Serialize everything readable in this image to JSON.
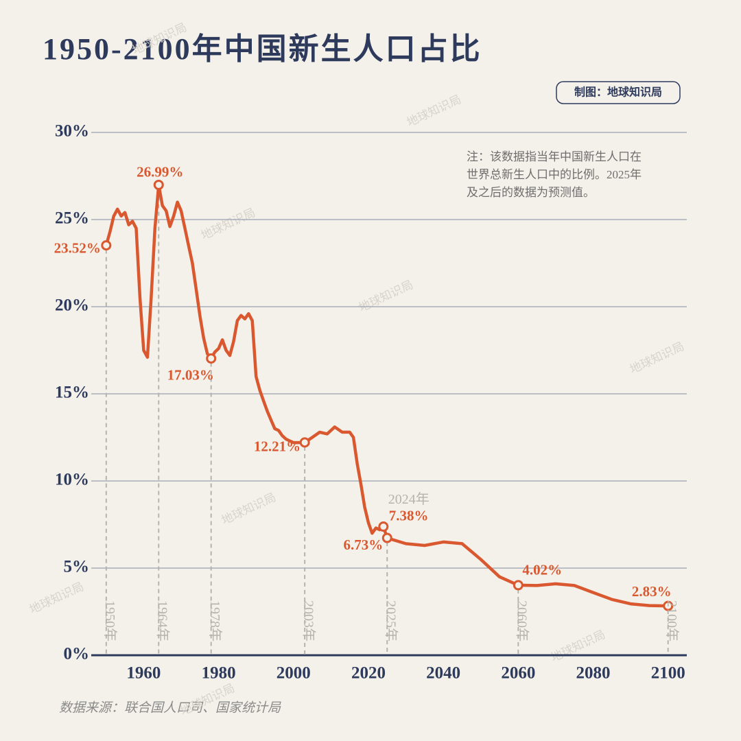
{
  "chart_data": {
    "type": "line",
    "title": "1950-2100年中国新生人口占比",
    "credit": "制图：地球知识局",
    "note": [
      "注：该数据指当年中国新生人口在",
      "世界总新生人口中的比例。2025年",
      "及之后的数据为预测值。"
    ],
    "source": "数据来源：联合国人口司、国家统计局",
    "watermark": "地球知识局",
    "color": "#d9582f",
    "grid": true,
    "xlim": [
      1946,
      2105
    ],
    "ylim": [
      0,
      30
    ],
    "xticks": [
      1960,
      1980,
      2000,
      2020,
      2040,
      2060,
      2080,
      2100
    ],
    "yticks": [
      {
        "value": 0,
        "label": "0%"
      },
      {
        "value": 5,
        "label": "5%"
      },
      {
        "value": 10,
        "label": "10%"
      },
      {
        "value": 15,
        "label": "15%"
      },
      {
        "value": 20,
        "label": "20%"
      },
      {
        "value": 25,
        "label": "25%"
      },
      {
        "value": 30,
        "label": "30%"
      }
    ],
    "x": [
      1950,
      1951,
      1952,
      1953,
      1954,
      1955,
      1956,
      1957,
      1958,
      1959,
      1960,
      1961,
      1962,
      1963,
      1964,
      1965,
      1966,
      1967,
      1968,
      1969,
      1970,
      1971,
      1972,
      1973,
      1974,
      1975,
      1976,
      1977,
      1978,
      1979,
      1980,
      1981,
      1982,
      1983,
      1984,
      1985,
      1986,
      1987,
      1988,
      1989,
      1990,
      1991,
      1992,
      1993,
      1994,
      1995,
      1996,
      1997,
      1998,
      1999,
      2000,
      2001,
      2003,
      2005,
      2007,
      2009,
      2011,
      2013,
      2015,
      2016,
      2017,
      2018,
      2019,
      2020,
      2021,
      2022,
      2023,
      2024,
      2025,
      2030,
      2035,
      2040,
      2045,
      2050,
      2055,
      2060,
      2065,
      2070,
      2075,
      2080,
      2085,
      2090,
      2095,
      2100
    ],
    "values": [
      23.52,
      24.3,
      25.2,
      25.6,
      25.2,
      25.4,
      24.7,
      24.9,
      24.5,
      20.5,
      17.5,
      17.1,
      20.5,
      24.5,
      26.99,
      25.8,
      25.5,
      24.6,
      25.2,
      26.0,
      25.5,
      24.5,
      23.5,
      22.5,
      21.0,
      19.5,
      18.2,
      17.3,
      17.03,
      17.4,
      17.6,
      18.1,
      17.5,
      17.2,
      18.0,
      19.2,
      19.5,
      19.3,
      19.6,
      19.2,
      16.0,
      15.2,
      14.6,
      14.0,
      13.5,
      13.0,
      12.9,
      12.6,
      12.4,
      12.3,
      12.2,
      12.2,
      12.21,
      12.5,
      12.8,
      12.7,
      13.1,
      12.8,
      12.8,
      12.5,
      11.0,
      9.8,
      8.5,
      7.6,
      7.0,
      7.3,
      7.2,
      7.38,
      6.73,
      6.4,
      6.3,
      6.5,
      6.4,
      5.5,
      4.5,
      4.02,
      4.0,
      4.1,
      4.0,
      3.6,
      3.2,
      2.95,
      2.85,
      2.83
    ],
    "highlights": [
      {
        "year_label": "1950年",
        "x": 1950,
        "value": 23.52,
        "value_label": "23.52%"
      },
      {
        "year_label": "1964年",
        "x": 1964,
        "value": 26.99,
        "value_label": "26.99%"
      },
      {
        "year_label": "1978年",
        "x": 1978,
        "value": 17.03,
        "value_label": "17.03%"
      },
      {
        "year_label": "2003年",
        "x": 2003,
        "value": 12.21,
        "value_label": "12.21%"
      },
      {
        "year_label": "2025年",
        "x": 2025,
        "value": 6.73,
        "value_label": "6.73%"
      },
      {
        "year_label": "2060年",
        "x": 2060,
        "value": 4.02,
        "value_label": "4.02%"
      },
      {
        "year_label": "2100年",
        "x": 2100,
        "value": 2.83,
        "value_label": "2.83%"
      }
    ],
    "callout": {
      "year_label": "2024年",
      "x": 2024,
      "value": 7.38,
      "value_label": "7.38%"
    }
  }
}
